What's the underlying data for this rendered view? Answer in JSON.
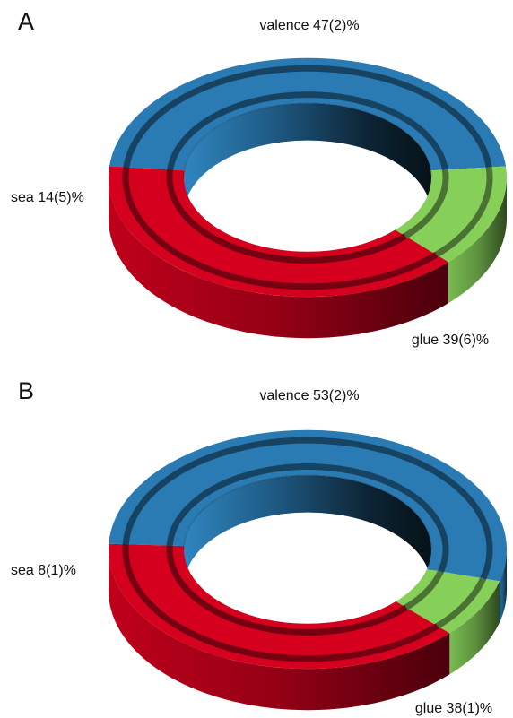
{
  "colors": {
    "valence": "#2a7ab3",
    "sea": "#86d05a",
    "glue": "#d4001e"
  },
  "chart_data": [
    {
      "type": "pie",
      "panel": "A",
      "slices": [
        {
          "name": "valence",
          "label": "valence 47(2)%",
          "value": 47
        },
        {
          "name": "sea",
          "label": "sea 14(5)%",
          "value": 14
        },
        {
          "name": "glue",
          "label": "glue 39(6)%",
          "value": 39
        }
      ]
    },
    {
      "type": "pie",
      "panel": "B",
      "slices": [
        {
          "name": "valence",
          "label": "valence 53(2)%",
          "value": 53
        },
        {
          "name": "sea",
          "label": "sea 8(1)%",
          "value": 8
        },
        {
          "name": "glue",
          "label": "glue 38(1)%",
          "value": 38
        }
      ]
    }
  ]
}
